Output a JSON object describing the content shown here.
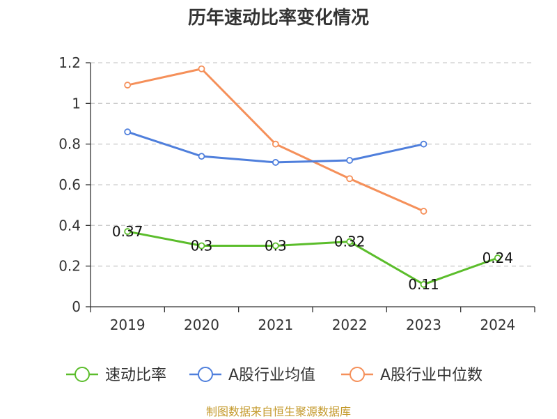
{
  "chart_data": {
    "type": "line",
    "title": "历年速动比率变化情况",
    "categories": [
      "2019",
      "2020",
      "2021",
      "2022",
      "2023",
      "2024"
    ],
    "ylim": [
      0,
      1.2
    ],
    "yticks": [
      "0",
      "0.2",
      "0.4",
      "0.6",
      "0.8",
      "1",
      "1.2"
    ],
    "grid": true,
    "legend_position": "bottom",
    "series": [
      {
        "name": "速动比率",
        "color": "#5bbd2b",
        "values": [
          0.37,
          0.3,
          0.3,
          0.32,
          0.11,
          0.24
        ],
        "labels": [
          "0.37",
          "0.3",
          "0.3",
          "0.32",
          "0.11",
          "0.24"
        ]
      },
      {
        "name": "A股行业均值",
        "color": "#4f7fdc",
        "values": [
          0.86,
          0.74,
          0.71,
          0.72,
          0.8,
          null
        ]
      },
      {
        "name": "A股行业中位数",
        "color": "#f5905a",
        "values": [
          1.09,
          1.17,
          0.8,
          0.63,
          0.47,
          null
        ]
      }
    ]
  },
  "source_text": "制图数据来自恒生聚源数据库"
}
